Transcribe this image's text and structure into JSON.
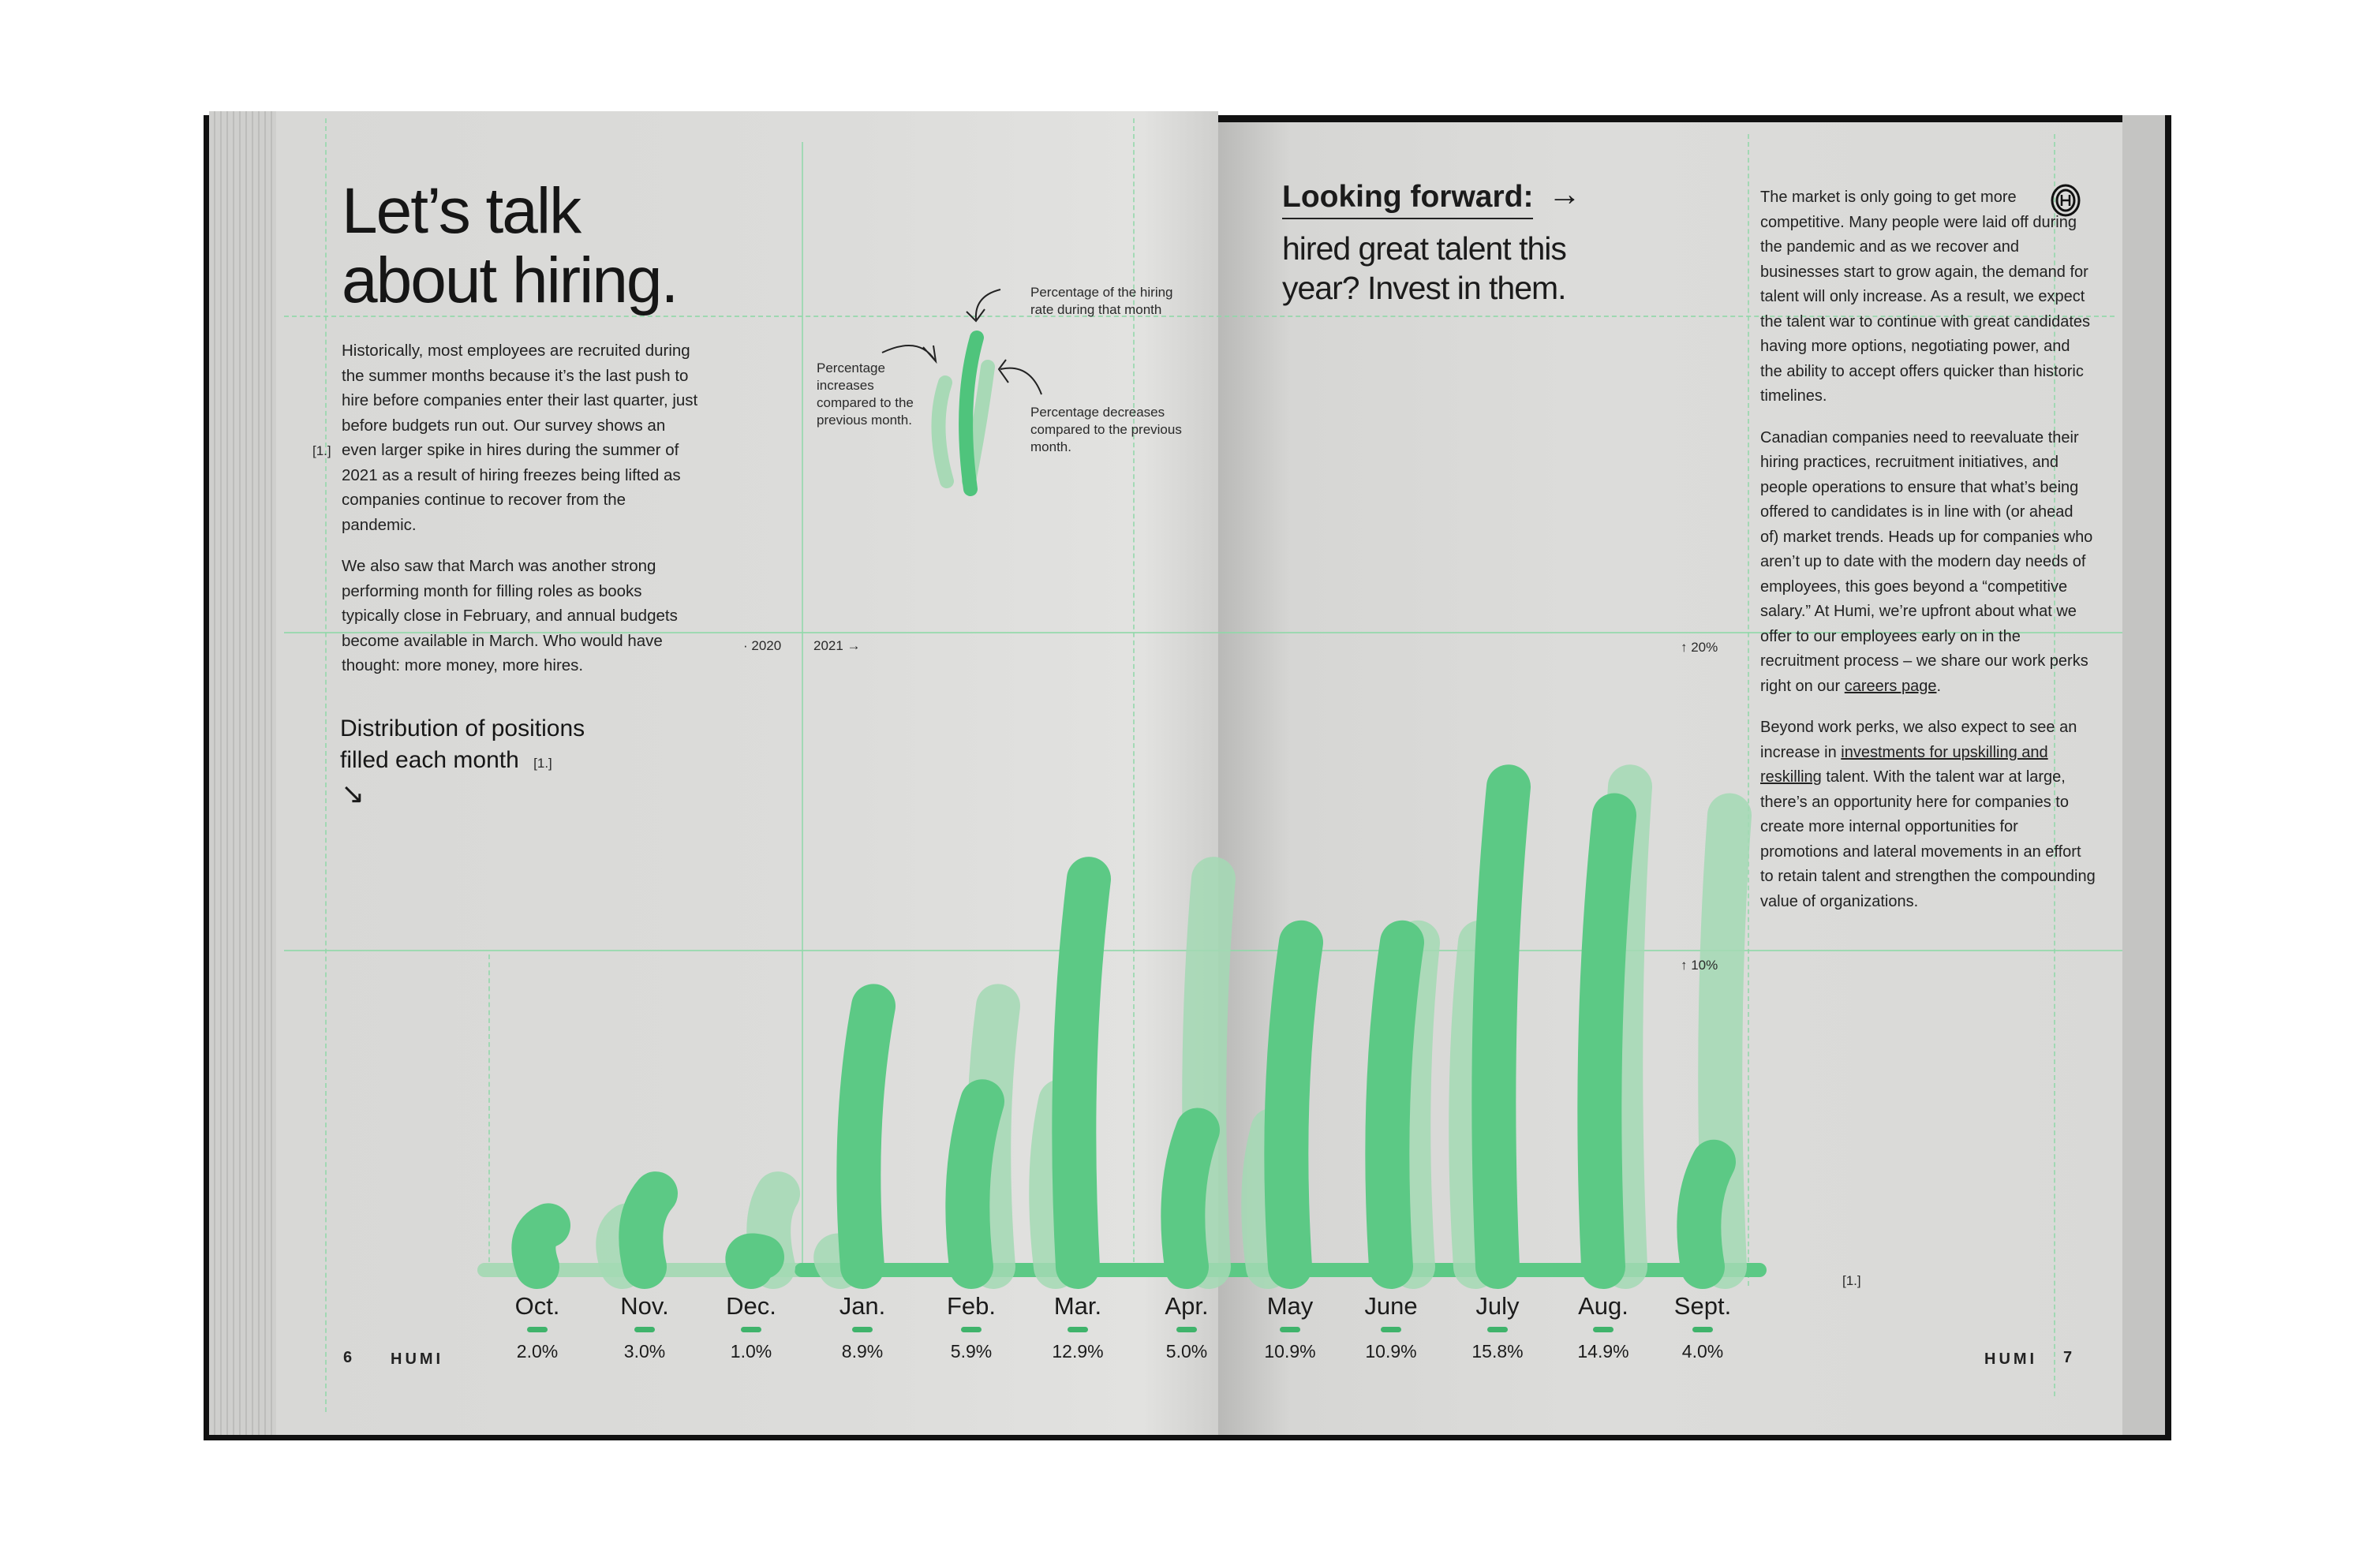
{
  "left_page": {
    "title_line1": "Let’s talk",
    "title_line2": "about hiring.",
    "footnote_marker": "[1.]",
    "paragraphs": [
      "Historically, most employees are recruited during the summer months because it’s the last push to hire before companies enter their last quarter, just before budgets run out. Our survey shows an even larger spike in hires during the summer of 2021 as a result of hiring freezes being lifted as companies continue to recover from the pandemic.",
      "We also saw that March was another strong performing month for filling roles as books typically close in February, and annual budgets become available in March. Who would have thought: more money, more hires."
    ],
    "chart_title_line1": "Distribution of positions",
    "chart_title_line2": "filled each month",
    "chart_title_ref": "[1.]",
    "down_arrow": "↘",
    "year_2020": "· 2020",
    "year_2021": "2021 →",
    "page_number": "6",
    "brand": "HUMI"
  },
  "legend": {
    "current": "Percentage of the hiring rate during that month",
    "increase": "Percentage increases compared to the previous month.",
    "decrease": "Percentage decreases compared to the previous month."
  },
  "right_page": {
    "heading": "Looking forward:",
    "heading_arrow": "→",
    "subheading": "hired great talent this year? Invest in them.",
    "paragraph1": "The market is only going to get more competitive. Many people were laid off during the pandemic and as we recover and businesses start to grow again, the demand for talent will only increase. As a result, we expect the talent war to continue with great candidates having more options, negotiating power, and the ability to accept offers quicker than historic timelines.",
    "paragraph2_before_link": "Canadian companies need to reevaluate their hiring practices, recruitment initiatives, and people operations to ensure that what’s being offered to candidates is in line with (or ahead of) market trends. Heads up for companies who aren’t up to date with the modern day needs of employees, this goes beyond a “competitive salary.” At Humi, we’re upfront about what we offer to our employees early on in the recruitment process – we share our work perks right on our ",
    "paragraph2_link": "careers page",
    "paragraph2_end": ".",
    "paragraph3_before_link": "Beyond work perks, we also expect to see an increase in ",
    "paragraph3_link": "investments for upskilling and reskilling",
    "paragraph3_after_link": " talent. With the talent war at large, there’s an opportunity here for companies to create more internal opportunities for promotions and lateral movements in an effort to retain talent and strengthen the compounding value of organizations.",
    "axis_20": "↑ 20%",
    "axis_10": "↑ 10%",
    "footnote_marker": "[1.]",
    "brand": "HUMI",
    "page_number": "7",
    "logo": "humi-spiral-logo"
  },
  "chart_data": {
    "type": "bar",
    "categories": [
      "Oct.",
      "Nov.",
      "Dec.",
      "Jan.",
      "Feb.",
      "Mar.",
      "Apr.",
      "May",
      "June",
      "July",
      "Aug.",
      "Sept."
    ],
    "value_labels": [
      "2.0%",
      "3.0%",
      "1.0%",
      "8.9%",
      "5.9%",
      "12.9%",
      "5.0%",
      "10.9%",
      "10.9%",
      "15.8%",
      "14.9%",
      "4.0%"
    ],
    "values": [
      2.0,
      3.0,
      1.0,
      8.9,
      5.9,
      12.9,
      5.0,
      10.9,
      10.9,
      15.8,
      14.9,
      4.0
    ],
    "units": "%",
    "ylim": [
      0,
      20
    ],
    "ticks": [
      "10%",
      "20%"
    ],
    "colors": {
      "bar": "#5cc985",
      "ghost": "#a3d9b4",
      "baseline": "#5cc985"
    }
  }
}
